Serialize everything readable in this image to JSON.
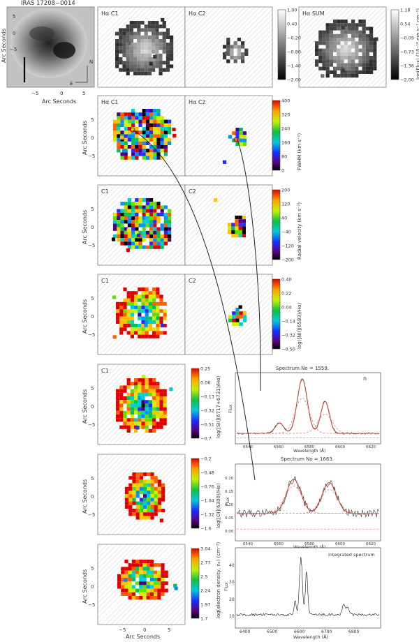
{
  "figure": {
    "object_name": "IRAS 17208−0014",
    "axis_label": "Arc Seconds",
    "compass": {
      "north": "N",
      "east": "E"
    },
    "tick_labels": [
      "−5",
      "0",
      "5"
    ]
  },
  "panels": {
    "top": {
      "c1": "Hα C1",
      "c2": "Hα C2",
      "sum": "Hα SUM"
    },
    "fwhm": {
      "c1": "Hα C1",
      "c2": "Hα C2"
    },
    "velocity": {
      "c1": "C1",
      "c2": "C2"
    },
    "nii": {
      "c1": "C1",
      "c2": "C2"
    },
    "sii": {
      "c1": "C1"
    }
  },
  "colorbars": [
    {
      "id": "top1",
      "type": "gray",
      "label": "",
      "ticks": [
        "1.00",
        "0.40",
        "−0.20",
        "−0.80",
        "−1.40",
        "−2.00"
      ]
    },
    {
      "id": "top2",
      "type": "gray",
      "label": "log(Flux) (10⁻¹⁴ erg s⁻¹ cm⁻²)",
      "ticks": [
        "1.18",
        "0.54",
        "−0.09",
        "−0.73",
        "−1.36",
        "−2.00"
      ]
    },
    {
      "id": "fwhm",
      "type": "rainbow",
      "label": "FWHM (km s⁻¹)",
      "ticks": [
        "400",
        "320",
        "240",
        "160",
        "80",
        "0"
      ]
    },
    {
      "id": "vel",
      "type": "rainbow",
      "label": "Radial velocity (km s⁻¹)",
      "ticks": [
        "200",
        "120",
        "40",
        "−40",
        "−120",
        "−200"
      ]
    },
    {
      "id": "nii",
      "type": "rainbow",
      "label": "log([NII](6583)/Hα)",
      "ticks": [
        "0.40",
        "0.22",
        "0.04",
        "−0.14",
        "−0.32",
        "−0.50"
      ]
    },
    {
      "id": "sii",
      "type": "rainbow",
      "label": "log([SII](6717+6731)/Hα)",
      "ticks": [
        "0.25",
        "0.06",
        "−0.13",
        "−0.32",
        "−0.51",
        "−0.7"
      ]
    },
    {
      "id": "oi",
      "type": "rainbow",
      "label": "log([OI](6300)/Hα)",
      "ticks": [
        "−0.2",
        "−0.48",
        "−0.76",
        "−1.04",
        "−1.32",
        "−1.6"
      ]
    },
    {
      "id": "ne",
      "type": "rainbow",
      "label": "log(electron density, nₑ) (cm⁻³)",
      "ticks": [
        "3.04",
        "2.77",
        "2.5",
        "2.24",
        "1.97",
        "1.7"
      ]
    }
  ],
  "spectra": [
    {
      "title": "Spectrum No = 1559.",
      "ylabel": "Flux",
      "xlabel": "Wavelength (Å)",
      "x_ticks": [
        "6540",
        "6560",
        "6580",
        "6600",
        "6620"
      ],
      "note": "n"
    },
    {
      "title": "Spectrum No = 1663.",
      "ylabel": "Flux",
      "xlabel": "Wavelength (Å)",
      "x_ticks": [
        "6540",
        "6560",
        "6580",
        "6600",
        "6620"
      ],
      "y_ticks": [
        "0.00",
        "0.05",
        "0.10",
        "0.15",
        "0.20"
      ]
    },
    {
      "title": "integrated spectrum",
      "ylabel": "Flux",
      "xlabel": "Wavelength (Å)",
      "x_ticks": [
        "6400",
        "6500",
        "6600",
        "6700",
        "6800"
      ],
      "y_ticks": [
        "10",
        "20",
        "30",
        "40"
      ]
    }
  ]
}
